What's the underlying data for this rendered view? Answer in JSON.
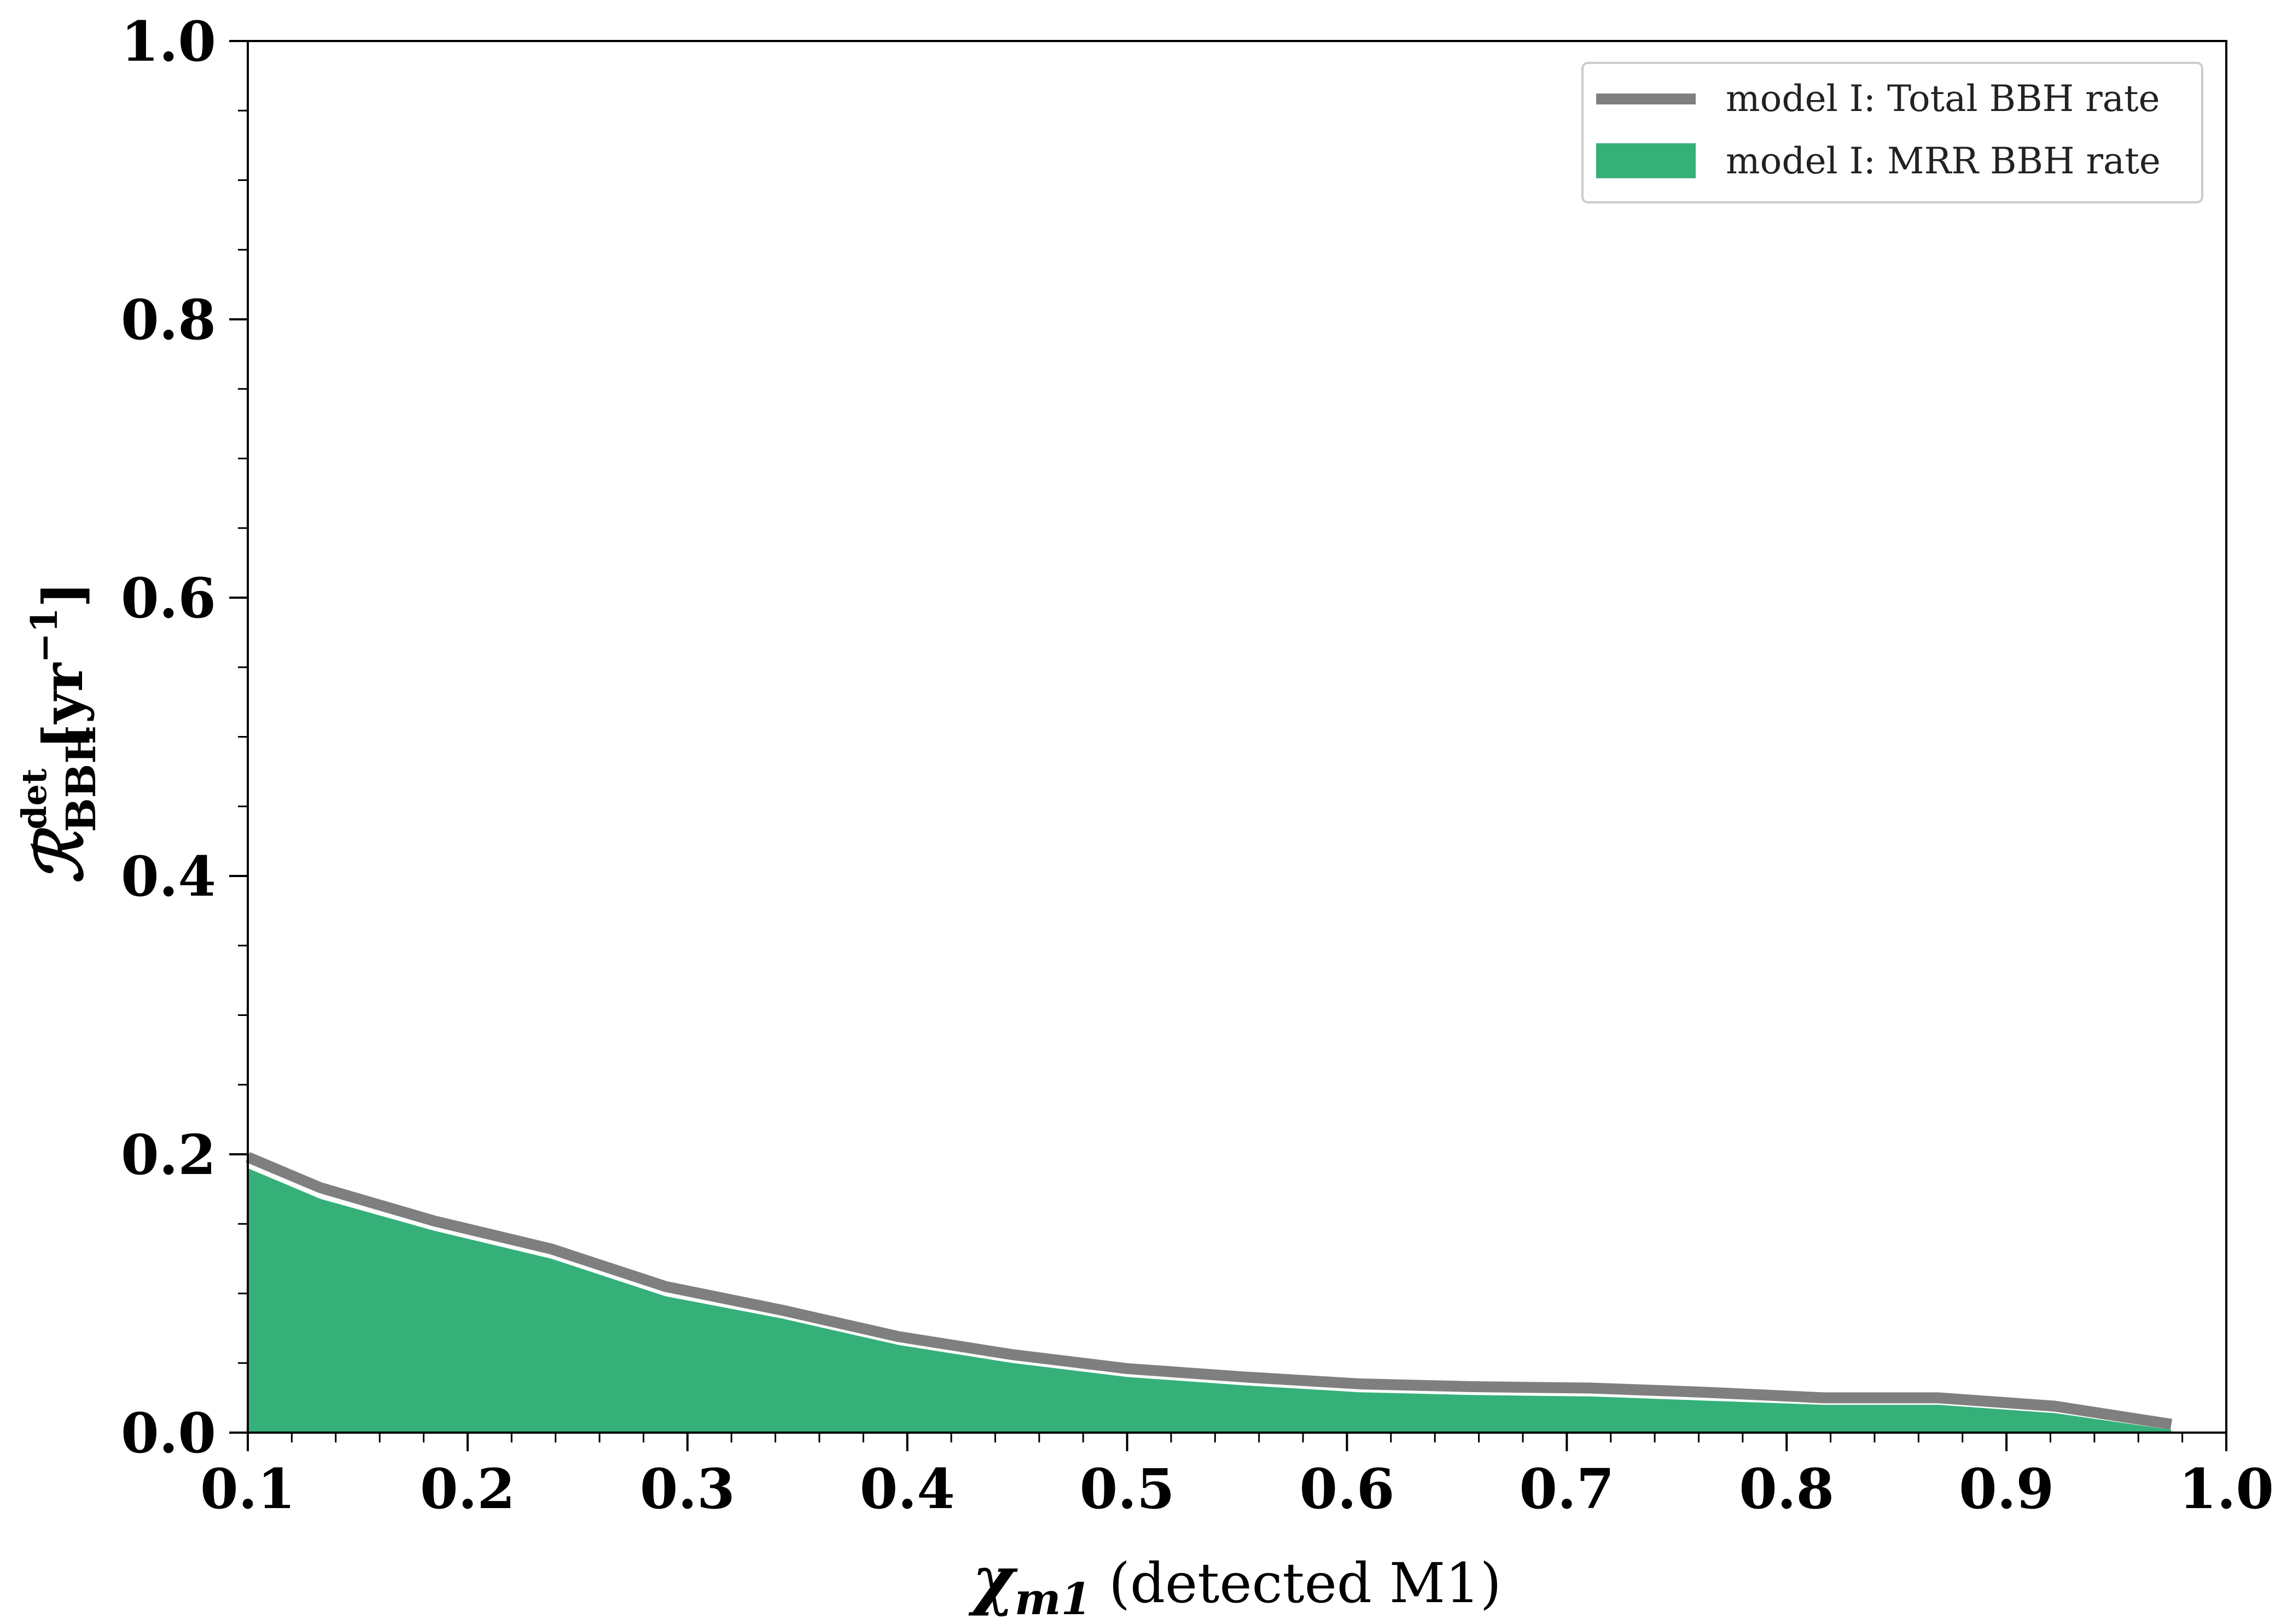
{
  "chart_data": {
    "type": "area",
    "xlabel": {
      "symbol": "χ",
      "subscript": "m1",
      "suffix": " (detected M1)"
    },
    "ylabel": {
      "symbol": "ℛ",
      "superscript": "det",
      "subscript": "BBH",
      "unit_open": " [yr",
      "unit_exp": "−1",
      "unit_close": "]"
    },
    "xlim": [
      0.1,
      1.0
    ],
    "ylim": [
      0.0,
      1.0
    ],
    "xticks": [
      "0.1",
      "0.2",
      "0.3",
      "0.4",
      "0.5",
      "0.6",
      "0.7",
      "0.8",
      "0.9",
      "1.0"
    ],
    "yticks": [
      "0.0",
      "0.2",
      "0.4",
      "0.6",
      "0.8",
      "1.0"
    ],
    "grid": false,
    "legend_position": "top-right",
    "x": [
      0.1,
      0.133,
      0.185,
      0.238,
      0.29,
      0.343,
      0.396,
      0.448,
      0.5,
      0.553,
      0.606,
      0.658,
      0.711,
      0.763,
      0.817,
      0.869,
      0.922,
      0.975
    ],
    "series": [
      {
        "name": "model I: Total BBH rate",
        "kind": "line",
        "color": "#7f7f7f",
        "values": [
          0.198,
          0.176,
          0.152,
          0.132,
          0.105,
          0.088,
          0.069,
          0.056,
          0.046,
          0.04,
          0.035,
          0.033,
          0.032,
          0.029,
          0.025,
          0.025,
          0.019,
          0.006
        ]
      },
      {
        "name": "model I: MRR BBH rate",
        "kind": "area",
        "color": "#35b079",
        "values": [
          0.19,
          0.168,
          0.145,
          0.125,
          0.098,
          0.082,
          0.063,
          0.05,
          0.04,
          0.034,
          0.029,
          0.027,
          0.026,
          0.023,
          0.02,
          0.02,
          0.014,
          0.002
        ]
      }
    ]
  }
}
